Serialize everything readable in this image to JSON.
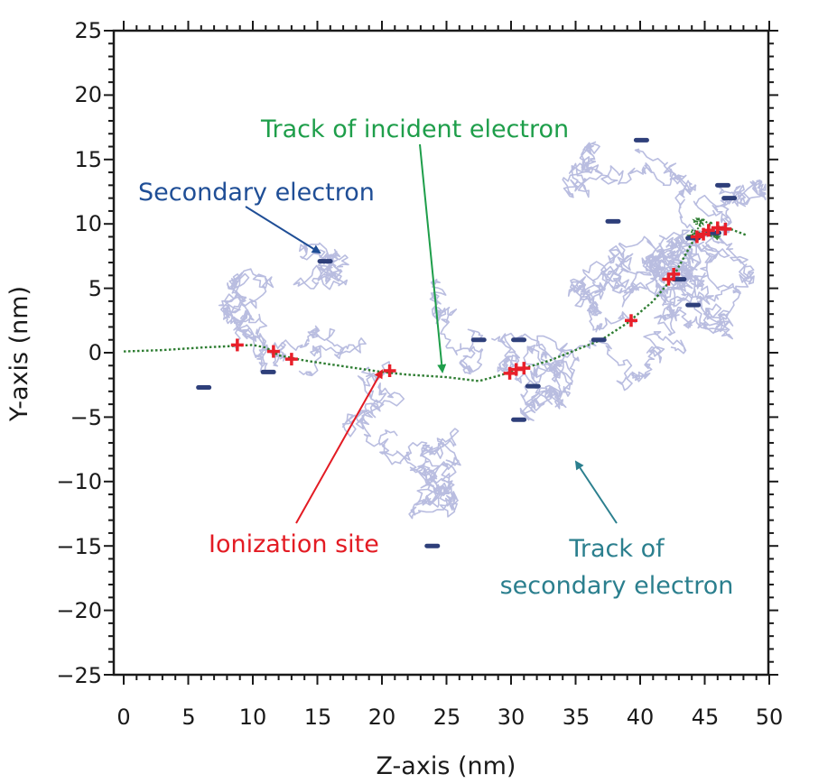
{
  "chart_data": {
    "type": "scatter",
    "xlabel": "Z-axis (nm)",
    "ylabel": "Y-axis (nm)",
    "xlim": [
      0,
      50
    ],
    "ylim": [
      -25,
      25
    ],
    "x_ticks": [
      "0",
      "5",
      "10",
      "15",
      "20",
      "25",
      "30",
      "35",
      "40",
      "45",
      "50"
    ],
    "y_ticks": [
      "25",
      "20",
      "15",
      "10",
      "5",
      "0",
      "−5",
      "−10",
      "−15",
      "−20",
      "−25"
    ],
    "grid": false,
    "colors": {
      "incident_track": "#2e7d32",
      "secondary_track": "#b9bde0",
      "ionization_site": "#e8202a",
      "secondary_electron": "#2e3f7a"
    },
    "incident_track": [
      [
        0,
        0.1
      ],
      [
        3,
        0.2
      ],
      [
        6,
        0.4
      ],
      [
        8,
        0.5
      ],
      [
        10,
        0.6
      ],
      [
        11,
        0.4
      ],
      [
        12,
        -0.2
      ],
      [
        14,
        -0.6
      ],
      [
        16,
        -0.9
      ],
      [
        18,
        -1.2
      ],
      [
        20,
        -1.5
      ],
      [
        22,
        -1.7
      ],
      [
        25,
        -1.9
      ],
      [
        27.5,
        -2.2
      ],
      [
        29,
        -1.8
      ],
      [
        31,
        -1.2
      ],
      [
        33,
        -0.6
      ],
      [
        35,
        0.2
      ],
      [
        37,
        1.0
      ],
      [
        39,
        2.3
      ],
      [
        41,
        4.0
      ],
      [
        42.5,
        5.8
      ],
      [
        44,
        8.5
      ],
      [
        45,
        9.3
      ],
      [
        46,
        9.8
      ],
      [
        47,
        9.6
      ],
      [
        48.3,
        9.1
      ]
    ],
    "ionization_sites": [
      [
        8.8,
        0.6
      ],
      [
        11.6,
        0.1
      ],
      [
        13.0,
        -0.5
      ],
      [
        20.6,
        -1.4
      ],
      [
        29.9,
        -1.6
      ],
      [
        30.4,
        -1.3
      ],
      [
        31.0,
        -1.2
      ],
      [
        39.3,
        2.5
      ],
      [
        42.2,
        5.7
      ],
      [
        42.6,
        6.1
      ],
      [
        44.4,
        9.0
      ],
      [
        44.9,
        9.2
      ],
      [
        45.3,
        9.5
      ],
      [
        46.0,
        9.7
      ],
      [
        46.6,
        9.6
      ]
    ],
    "secondary_electrons": [
      [
        6.2,
        -2.7
      ],
      [
        11.2,
        -1.5
      ],
      [
        15.6,
        7.1
      ],
      [
        23.9,
        -15.0
      ],
      [
        27.5,
        1.0
      ],
      [
        30.6,
        1.0
      ],
      [
        31.7,
        -2.6
      ],
      [
        30.6,
        -5.2
      ],
      [
        36.8,
        1.0
      ],
      [
        37.9,
        10.2
      ],
      [
        40.1,
        16.5
      ],
      [
        43.0,
        5.7
      ],
      [
        44.1,
        3.7
      ],
      [
        44.1,
        8.9
      ],
      [
        46.4,
        13.0
      ],
      [
        46.9,
        12.0
      ],
      [
        45.7,
        9.3
      ]
    ],
    "annotations": [
      {
        "text": "Secondary electron",
        "color": "#1f4e96",
        "arrow_to": [
          15.5,
          7.5
        ]
      },
      {
        "text": "Track of incident electron",
        "color": "#1e9e4a",
        "arrow_to": [
          24.8,
          -1.7
        ]
      },
      {
        "text": "Ionization site",
        "color": "#e31b23",
        "arrow_to": [
          20.6,
          -1.6
        ]
      },
      {
        "text": "Track of",
        "color": "#2b7f8e",
        "arrow_to": [
          33.2,
          -8.7
        ]
      },
      {
        "text": "secondary electron",
        "color": "#2b7f8e"
      }
    ]
  }
}
